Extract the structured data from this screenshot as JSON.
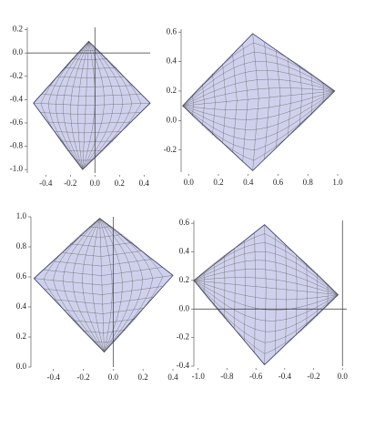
{
  "chart_data": [
    {
      "type": "region",
      "color": "#cfd1ec",
      "x": [
        -0.05,
        0.45,
        -0.1,
        -0.5
      ],
      "values": [
        0.1,
        -0.43,
        -1.0,
        -0.43
      ],
      "xlim": [
        -0.55,
        0.45
      ],
      "ylim": [
        -1.03,
        0.22
      ],
      "xticks": [
        -0.4,
        -0.2,
        {
          "value": 0,
          "label": "0.0"
        },
        0.2,
        0.4
      ],
      "yticks": [
        0.2,
        {
          "value": 0,
          "label": "0.0"
        },
        -0.2,
        -0.4,
        -0.6,
        -0.8,
        {
          "value": -1,
          "label": "-1.0"
        }
      ]
    },
    {
      "type": "region",
      "color": "#cfd1ec",
      "x": [
        -0.04,
        0.43,
        0.98,
        0.43
      ],
      "values": [
        0.1,
        0.59,
        0.2,
        -0.34
      ],
      "xlim": [
        -0.05,
        1.0
      ],
      "ylim": [
        -0.35,
        0.62
      ],
      "xticks": [
        {
          "value": 0,
          "label": "0.0"
        },
        0.2,
        0.4,
        0.6,
        0.8,
        {
          "value": 1,
          "label": "1.0"
        }
      ],
      "yticks": [
        0.6,
        0.4,
        0.2,
        {
          "value": 0,
          "label": "0.0"
        },
        -0.2
      ]
    },
    {
      "type": "region",
      "color": "#cfd1ec",
      "x": [
        -0.09,
        0.4,
        -0.06,
        -0.53
      ],
      "values": [
        0.99,
        0.61,
        0.1,
        0.59
      ],
      "xlim": [
        -0.55,
        0.4
      ],
      "ylim": [
        0,
        1.0
      ],
      "xticks": [
        -0.4,
        -0.2,
        {
          "value": 0,
          "label": "0.0"
        },
        0.2,
        0.4
      ],
      "yticks": [
        {
          "value": 1,
          "label": "1.0"
        },
        0.8,
        0.6,
        0.4,
        0.2,
        {
          "value": 0,
          "label": "0.0"
        }
      ]
    },
    {
      "type": "region",
      "color": "#cfd1ec",
      "x": [
        -1.03,
        -0.54,
        -0.03,
        -0.54
      ],
      "values": [
        0.2,
        0.59,
        0.1,
        -0.39
      ],
      "xlim": [
        -1.03,
        0.03
      ],
      "ylim": [
        -0.4,
        0.62
      ],
      "xticks": [
        {
          "value": -1,
          "label": "-1.0"
        },
        -0.8,
        -0.6,
        -0.4,
        -0.2,
        {
          "value": 0,
          "label": "0.0"
        }
      ],
      "yticks": [
        0.6,
        0.4,
        0.2,
        {
          "value": 0,
          "label": "0.0"
        },
        -0.2,
        -0.4
      ]
    }
  ]
}
